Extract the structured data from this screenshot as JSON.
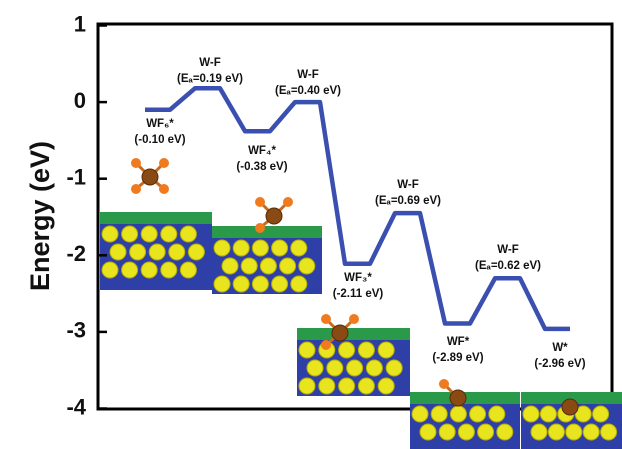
{
  "chart_data": {
    "type": "line",
    "y_label": "Energy (eV)",
    "ylim": [
      -4,
      1
    ],
    "yticks": [
      -4,
      -3,
      -2,
      -1,
      0,
      1
    ],
    "color": "#3a4fb0",
    "values": [
      -0.1,
      -0.1,
      0.18,
      0.18,
      -0.38,
      -0.38,
      0.0,
      0.0,
      -2.11,
      -2.11,
      -1.45,
      -1.45,
      -2.89,
      -2.89,
      -2.3,
      -2.3,
      -2.96,
      -2.96
    ],
    "annotations": [
      "W-F",
      "(Eₐ=0.19 eV)",
      "W-F",
      "(Eₐ=0.40 eV)",
      "WF₆*",
      "(-0.10 eV)",
      "WF₄*",
      "(-0.38 eV)",
      "W-F",
      "(Eₐ=0.69 eV)",
      "WF₃*",
      "(-2.11 eV)",
      "W-F",
      "(Eₐ=0.62 eV)",
      "WF*",
      "(-2.89 eV)",
      "W*",
      "(-2.96 eV)"
    ]
  }
}
